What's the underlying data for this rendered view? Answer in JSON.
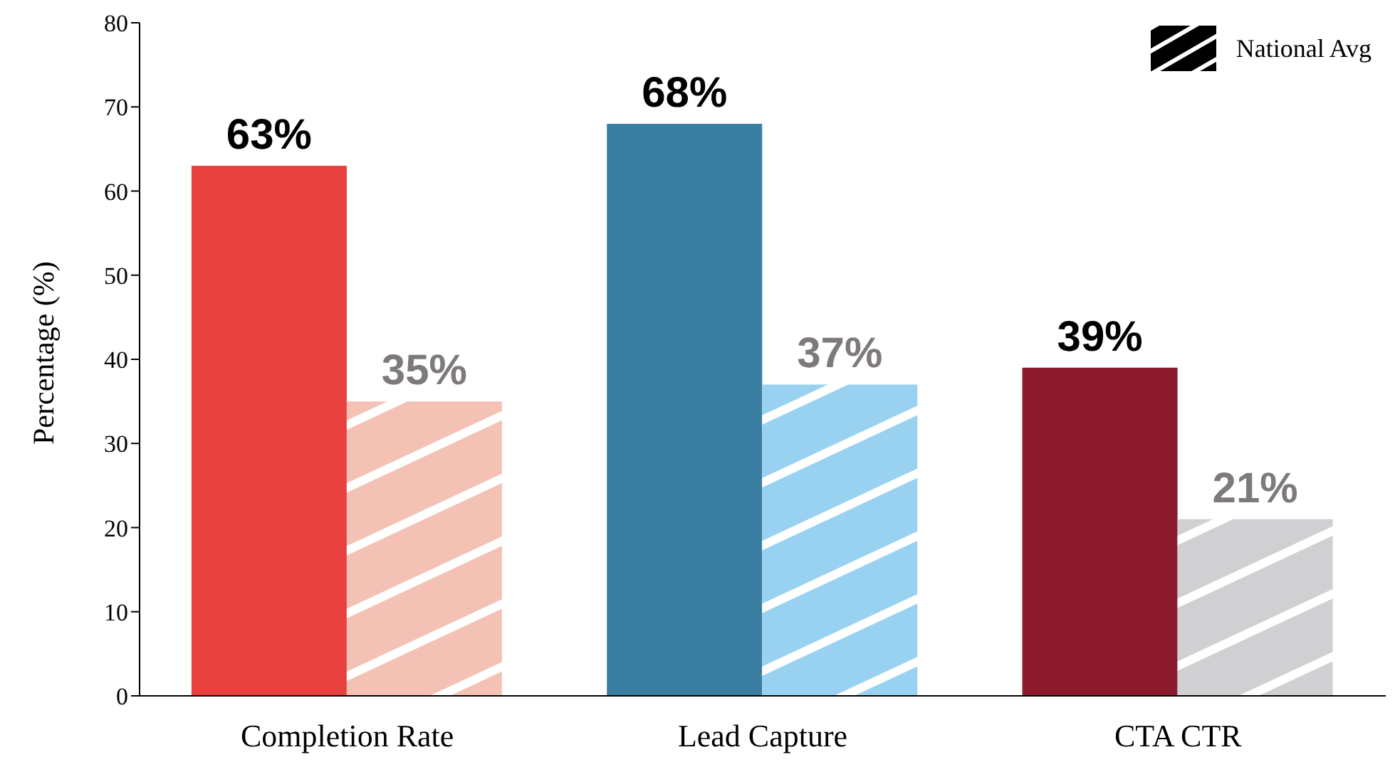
{
  "chart_data": {
    "type": "bar",
    "ylabel": "Percentage (%)",
    "categories": [
      "Completion Rate",
      "Lead Capture",
      "CTA CTR"
    ],
    "series": [
      {
        "colors": [
          "#e8403f",
          "#3a7fa1",
          "#8a1a2c"
        ],
        "values": [
          63,
          68,
          39
        ],
        "value_labels": [
          "63%",
          "68%",
          "39%"
        ]
      },
      {
        "name": "National Avg",
        "color": "#000000",
        "colors": [
          "#f3c2b5",
          "#99d2f1",
          "#d0d0d2"
        ],
        "values": [
          35,
          37,
          21
        ],
        "value_labels": [
          "35%",
          "37%",
          "21%"
        ]
      }
    ],
    "ylim": [
      0,
      80
    ],
    "yticks": [
      0,
      10,
      20,
      30,
      40,
      50,
      60,
      70,
      80
    ],
    "grid": false,
    "legend": "top right"
  }
}
